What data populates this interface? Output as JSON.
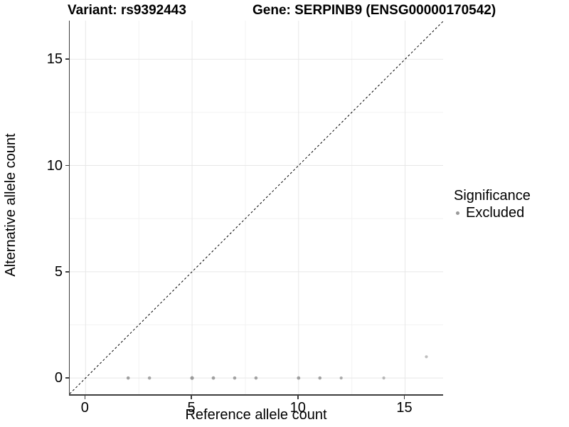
{
  "title": {
    "variant": "Variant: rs9392443",
    "gene": "Gene: SERPINB9 (ENSG00000170542)"
  },
  "axes": {
    "x_label": "Reference allele count",
    "y_label": "Alternative allele count"
  },
  "legend": {
    "title": "Significance",
    "items": [
      {
        "label": "Excluded",
        "color": "#9a9a9a"
      }
    ]
  },
  "chart_data": {
    "type": "scatter",
    "title": "Variant: rs9392443 / Gene: SERPINB9 (ENSG00000170542)",
    "xlabel": "Reference allele count",
    "ylabel": "Alternative allele count",
    "xlim": [
      -0.745,
      16.785
    ],
    "ylim": [
      -0.765,
      16.815
    ],
    "x_breaks": [
      0,
      5,
      10,
      15
    ],
    "y_breaks": [
      0,
      5,
      10,
      15
    ],
    "x_minor_breaks": [
      2.5,
      7.5,
      12.5
    ],
    "y_minor_breaks": [
      2.5,
      7.5,
      12.5
    ],
    "grid": true,
    "legend_position": "right",
    "reference_line": {
      "type": "identity y=x",
      "style": "dashed",
      "color": "#000000"
    },
    "series": [
      {
        "name": "Excluded",
        "points": [
          {
            "x": 2,
            "y": 0,
            "r": 2.3,
            "color": "#9f9f9f"
          },
          {
            "x": 3,
            "y": 0,
            "r": 2.3,
            "color": "#a6a6a6"
          },
          {
            "x": 5,
            "y": 0,
            "r": 2.6,
            "color": "#9b9b9b"
          },
          {
            "x": 6,
            "y": 0,
            "r": 2.4,
            "color": "#a0a0a0"
          },
          {
            "x": 7,
            "y": 0,
            "r": 2.3,
            "color": "#a2a2a2"
          },
          {
            "x": 8,
            "y": 0,
            "r": 2.3,
            "color": "#a2a2a2"
          },
          {
            "x": 10,
            "y": 0,
            "r": 2.4,
            "color": "#9f9f9f"
          },
          {
            "x": 11,
            "y": 0,
            "r": 2.3,
            "color": "#a2a2a2"
          },
          {
            "x": 12,
            "y": 0,
            "r": 2.1,
            "color": "#ababab"
          },
          {
            "x": 14,
            "y": 0,
            "r": 2.1,
            "color": "#b7b7b7"
          },
          {
            "x": 16,
            "y": 1,
            "r": 2.1,
            "color": "#bfbfbf"
          }
        ]
      }
    ],
    "style": {
      "grid_major": "#e7e7e7",
      "grid_minor": "#f2f2f2",
      "axis_line": "#3d3d3d",
      "diagonal": "#000000",
      "background": "#ffffff"
    }
  }
}
